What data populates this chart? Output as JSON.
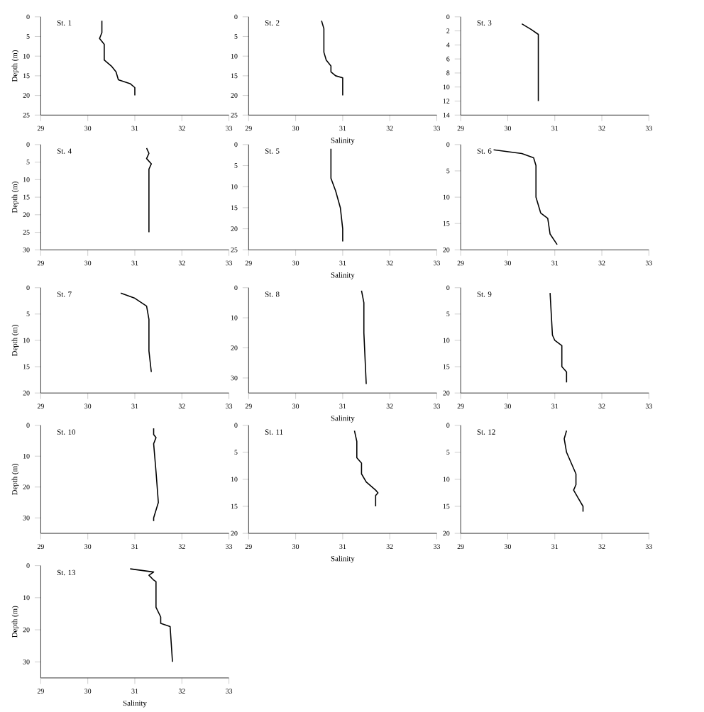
{
  "chart_data": [
    {
      "type": "line",
      "title": "St. 1",
      "ylabel": "Depth (m)",
      "color": "#000000",
      "x": [
        30.3,
        30.3,
        30.25,
        30.35,
        30.35,
        30.5,
        30.6,
        30.65,
        30.9,
        31.0,
        31.0
      ],
      "values": [
        1,
        4,
        5.5,
        7,
        11,
        12.5,
        14,
        16,
        17,
        18,
        20
      ],
      "xlim": [
        29,
        33
      ],
      "xticks": [
        29,
        30,
        31,
        32,
        33
      ],
      "ylim": [
        25,
        0
      ],
      "yticks": [
        0,
        5,
        10,
        15,
        20,
        25
      ]
    },
    {
      "type": "line",
      "title": "St. 2",
      "xlabel": "Salinity",
      "color": "#000000",
      "x": [
        30.55,
        30.6,
        30.6,
        30.65,
        30.75,
        30.75,
        30.85,
        31.0,
        31.0
      ],
      "values": [
        1,
        3,
        9,
        11,
        12.5,
        14,
        15,
        15.5,
        20
      ],
      "xlim": [
        29,
        33
      ],
      "xticks": [
        29,
        30,
        31,
        32,
        33
      ],
      "ylim": [
        25,
        0
      ],
      "yticks": [
        0,
        5,
        10,
        15,
        20,
        25
      ]
    },
    {
      "type": "line",
      "title": "St. 3",
      "color": "#000000",
      "x": [
        30.3,
        30.5,
        30.65,
        30.65
      ],
      "values": [
        1,
        1.8,
        2.5,
        12
      ],
      "xlim": [
        29,
        33
      ],
      "xticks": [
        29,
        30,
        31,
        32,
        33
      ],
      "ylim": [
        14,
        0
      ],
      "yticks": [
        0,
        2,
        4,
        6,
        8,
        10,
        12,
        14
      ]
    },
    {
      "type": "line",
      "title": "St. 4",
      "ylabel": "Depth (m)",
      "color": "#000000",
      "x": [
        31.25,
        31.3,
        31.25,
        31.35,
        31.3,
        31.3
      ],
      "values": [
        1,
        2.5,
        4,
        5.5,
        7,
        25
      ],
      "xlim": [
        29,
        33
      ],
      "xticks": [
        29,
        30,
        31,
        32,
        33
      ],
      "ylim": [
        30,
        0
      ],
      "yticks": [
        0,
        5,
        10,
        15,
        20,
        25,
        30
      ]
    },
    {
      "type": "line",
      "title": "St. 5",
      "xlabel": "Salinity",
      "color": "#000000",
      "x": [
        30.75,
        30.75,
        30.85,
        30.95,
        31.0,
        31.0
      ],
      "values": [
        1,
        8,
        11,
        15,
        20,
        23
      ],
      "xlim": [
        29,
        33
      ],
      "xticks": [
        29,
        30,
        31,
        32,
        33
      ],
      "ylim": [
        25,
        0
      ],
      "yticks": [
        0,
        5,
        10,
        15,
        20,
        25
      ]
    },
    {
      "type": "line",
      "title": "St. 6",
      "color": "#000000",
      "x": [
        29.7,
        30.3,
        30.55,
        30.6,
        30.6,
        30.7,
        30.85,
        30.9,
        31.05
      ],
      "values": [
        1,
        1.7,
        2.5,
        4,
        10,
        13,
        14,
        17,
        19
      ],
      "xlim": [
        29,
        33
      ],
      "xticks": [
        29,
        30,
        31,
        32,
        33
      ],
      "ylim": [
        20,
        0
      ],
      "yticks": [
        0,
        5,
        10,
        15,
        20
      ]
    },
    {
      "type": "line",
      "title": "St. 7",
      "ylabel": "Depth (m)",
      "color": "#000000",
      "x": [
        30.7,
        31.0,
        31.25,
        31.3,
        31.3,
        31.35
      ],
      "values": [
        1,
        2,
        3.5,
        6,
        12,
        16
      ],
      "xlim": [
        29,
        33
      ],
      "xticks": [
        29,
        30,
        31,
        32,
        33
      ],
      "ylim": [
        20,
        0
      ],
      "yticks": [
        0,
        5,
        10,
        15,
        20
      ]
    },
    {
      "type": "line",
      "title": "St. 8",
      "xlabel": "Salinity",
      "color": "#000000",
      "x": [
        31.4,
        31.45,
        31.45,
        31.5
      ],
      "values": [
        1,
        5,
        15,
        32
      ],
      "xlim": [
        29,
        33
      ],
      "xticks": [
        29,
        30,
        31,
        32,
        33
      ],
      "ylim": [
        35,
        0
      ],
      "yticks": [
        0,
        10,
        20,
        30
      ]
    },
    {
      "type": "line",
      "title": "St. 9",
      "color": "#000000",
      "x": [
        30.9,
        30.95,
        31.0,
        31.15,
        31.15,
        31.25,
        31.25
      ],
      "values": [
        1,
        9,
        10,
        11,
        15,
        16,
        18
      ],
      "xlim": [
        29,
        33
      ],
      "xticks": [
        29,
        30,
        31,
        32,
        33
      ],
      "ylim": [
        20,
        0
      ],
      "yticks": [
        0,
        5,
        10,
        15,
        20
      ]
    },
    {
      "type": "line",
      "title": "St. 10",
      "ylabel": "Depth (m)",
      "color": "#000000",
      "x": [
        31.4,
        31.4,
        31.45,
        31.4,
        31.45,
        31.5,
        31.4,
        31.4
      ],
      "values": [
        1,
        3,
        4,
        6,
        15,
        25,
        30,
        31
      ],
      "xlim": [
        29,
        33
      ],
      "xticks": [
        29,
        30,
        31,
        32,
        33
      ],
      "ylim": [
        35,
        0
      ],
      "yticks": [
        0,
        10,
        20,
        30
      ]
    },
    {
      "type": "line",
      "title": "St. 11",
      "xlabel": "Salinity",
      "color": "#000000",
      "x": [
        31.25,
        31.3,
        31.3,
        31.4,
        31.4,
        31.5,
        31.7,
        31.75,
        31.7,
        31.7
      ],
      "values": [
        1,
        3,
        6,
        7,
        9,
        10.5,
        12,
        12.5,
        13,
        15
      ],
      "xlim": [
        29,
        33
      ],
      "xticks": [
        29,
        30,
        31,
        32,
        33
      ],
      "ylim": [
        20,
        0
      ],
      "yticks": [
        0,
        5,
        10,
        15,
        20
      ]
    },
    {
      "type": "line",
      "title": "St. 12",
      "color": "#000000",
      "x": [
        31.25,
        31.2,
        31.25,
        31.35,
        31.45,
        31.45,
        31.4,
        31.5,
        31.6,
        31.6
      ],
      "values": [
        1,
        2.5,
        5,
        7,
        9,
        11,
        12,
        13.5,
        15,
        16
      ],
      "xlim": [
        29,
        33
      ],
      "xticks": [
        29,
        30,
        31,
        32,
        33
      ],
      "ylim": [
        20,
        0
      ],
      "yticks": [
        0,
        5,
        10,
        15,
        20
      ]
    },
    {
      "type": "line",
      "title": "St. 13",
      "xlabel": "Salinity",
      "ylabel": "Depth (m)",
      "color": "#000000",
      "x": [
        30.9,
        31.4,
        31.3,
        31.4,
        31.45,
        31.45,
        31.55,
        31.55,
        31.75,
        31.8
      ],
      "values": [
        1,
        2,
        3,
        4.5,
        5,
        13,
        16,
        18,
        19,
        30
      ],
      "xlim": [
        29,
        33
      ],
      "xticks": [
        29,
        30,
        31,
        32,
        33
      ],
      "ylim": [
        35,
        0
      ],
      "yticks": [
        0,
        10,
        20,
        30
      ]
    }
  ]
}
